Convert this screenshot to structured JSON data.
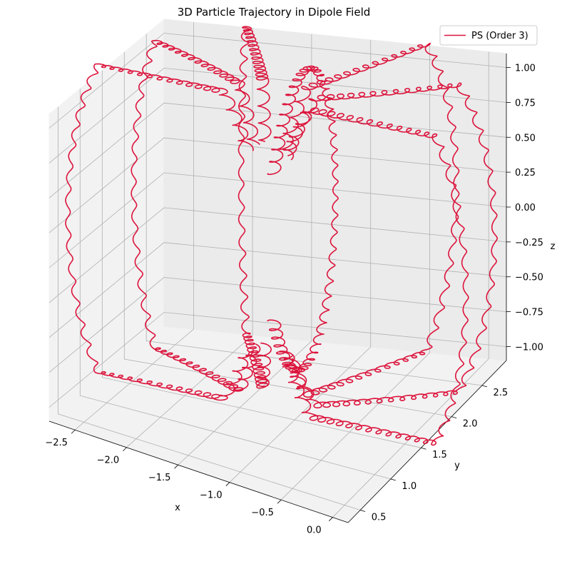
{
  "chart_data": {
    "type": "line",
    "projection": "3d",
    "title": "3D Particle Trajectory in Dipole Field",
    "xlabel": "x",
    "ylabel": "y",
    "zlabel": "z",
    "xlim": [
      -2.75,
      0.15
    ],
    "ylim": [
      0.3,
      2.9
    ],
    "zlim": [
      -1.1,
      1.1
    ],
    "x_ticks": [
      "−2.5",
      "−2.0",
      "−1.5",
      "−1.0",
      "−0.5",
      "0.0"
    ],
    "y_ticks": [
      "0.5",
      "1.0",
      "1.5",
      "2.0",
      "2.5"
    ],
    "z_ticks": [
      "−1.00",
      "−0.75",
      "−0.50",
      "−0.25",
      "0.00",
      "0.25",
      "0.50",
      "0.75",
      "1.00"
    ],
    "grid": true,
    "legend_position": "top-right",
    "series": [
      {
        "name": "PS (Order 3)",
        "color": "#dc143c",
        "note_shape": "field lines of a dipole at several azimuths, each drawn with small gyration loops",
        "lines": [
          {
            "phi_deg": 180,
            "L": 2.0
          },
          {
            "phi_deg": 150,
            "L": 2.0
          },
          {
            "phi_deg": 120,
            "L": 2.0
          },
          {
            "phi_deg": 90,
            "L": 1.45
          },
          {
            "phi_deg": 60,
            "L": 2.0
          },
          {
            "phi_deg": 30,
            "L": 2.0
          },
          {
            "phi_deg": 0,
            "L": 2.0
          }
        ]
      }
    ]
  }
}
